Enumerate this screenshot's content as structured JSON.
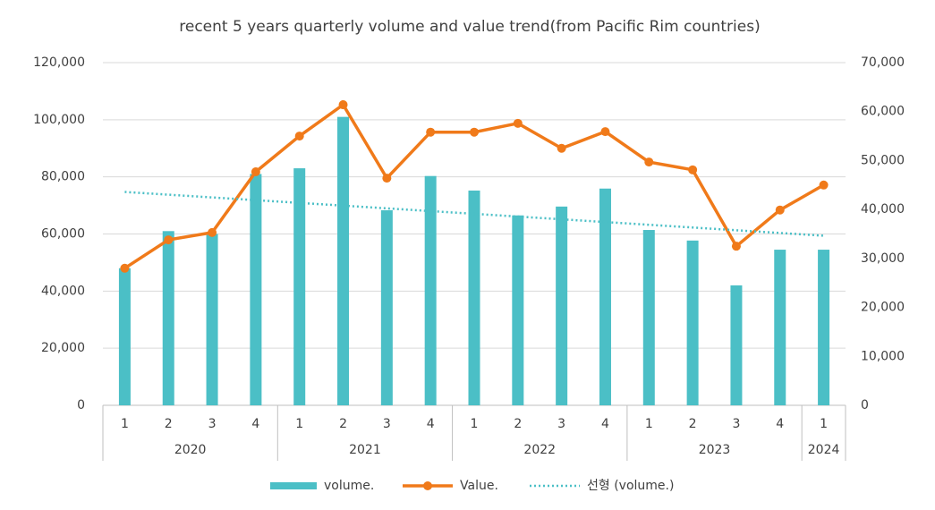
{
  "chart_data": {
    "type": "bar-line",
    "title": "recent 5 years quarterly volume and value trend(from  Pacific Rim countries)",
    "categories": [
      "1",
      "2",
      "3",
      "4",
      "1",
      "2",
      "3",
      "4",
      "1",
      "2",
      "3",
      "4",
      "1",
      "2",
      "3",
      "4",
      "1"
    ],
    "category_groups": [
      {
        "label": "2020",
        "span": 4
      },
      {
        "label": "2021",
        "span": 4
      },
      {
        "label": "2022",
        "span": 4
      },
      {
        "label": "2023",
        "span": 4
      },
      {
        "label": "2024",
        "span": 1
      }
    ],
    "series": [
      {
        "name": "volume.",
        "type": "bar",
        "color": "#4bbfc6",
        "values": [
          48000,
          61000,
          60000,
          81000,
          83000,
          101000,
          68300,
          80300,
          75200,
          66500,
          69600,
          75900,
          61400,
          57700,
          42000,
          54500,
          54500
        ]
      },
      {
        "name": "Value.",
        "type": "line",
        "axis": "y2",
        "color": "#f07a1a",
        "values": [
          28000,
          33800,
          35300,
          47700,
          55000,
          61400,
          46400,
          55800,
          55800,
          57600,
          52500,
          55900,
          49700,
          48100,
          32500,
          39900,
          45000
        ]
      }
    ],
    "trendline": {
      "name": "선형 (volume.)",
      "color": "#4bbfc6"
    },
    "ylim": [
      0,
      120000
    ],
    "yticks": [
      0,
      {
        "value": 20000,
        "label": "20,000"
      },
      {
        "value": 40000,
        "label": "40,000"
      },
      {
        "value": 60000,
        "label": "60,000"
      },
      {
        "value": 80000,
        "label": "80,000"
      },
      {
        "value": 100000,
        "label": "100,000"
      },
      {
        "value": 120000,
        "label": "120,000"
      }
    ],
    "y2lim": [
      0,
      70000
    ],
    "y2ticks": [
      0,
      {
        "value": 10000,
        "label": "10,000"
      },
      {
        "value": 20000,
        "label": "20,000"
      },
      {
        "value": 30000,
        "label": "30,000"
      },
      {
        "value": 40000,
        "label": "40,000"
      },
      {
        "value": 50000,
        "label": "50,000"
      },
      {
        "value": 60000,
        "label": "60,000"
      },
      {
        "value": 70000,
        "label": "70,000"
      }
    ],
    "grid": true
  }
}
